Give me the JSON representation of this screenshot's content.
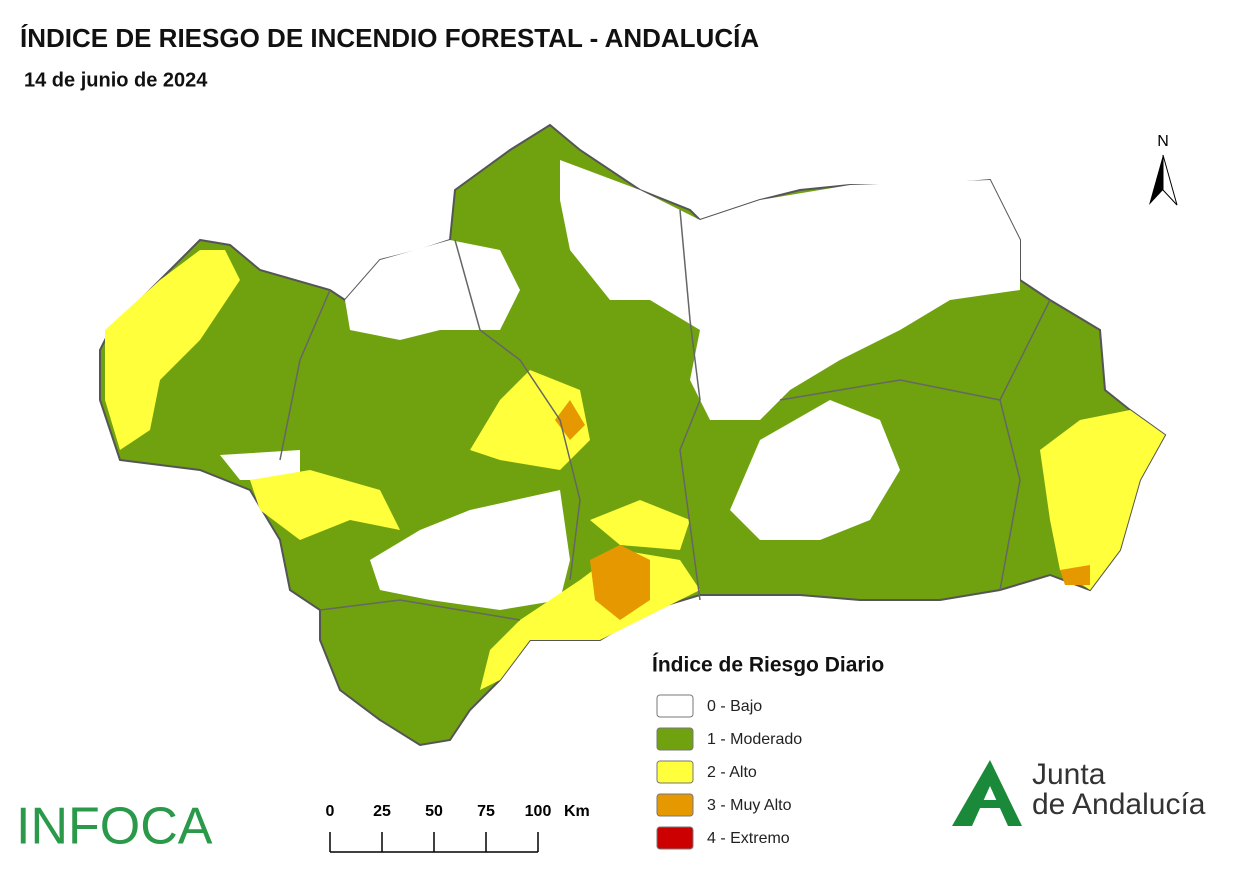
{
  "header": {
    "title": "ÍNDICE DE RIESGO DE INCENDIO FORESTAL - ANDALUCÍA",
    "date": "14 de junio de 2024"
  },
  "legend": {
    "title": "Índice de Riesgo Diario",
    "items": [
      {
        "label": "0 - Bajo",
        "color": "#ffffff"
      },
      {
        "label": "1 - Moderado",
        "color": "#70a20f"
      },
      {
        "label": "2 - Alto",
        "color": "#ffff3c"
      },
      {
        "label": "3 - Muy Alto",
        "color": "#e69800"
      },
      {
        "label": "4 - Extremo",
        "color": "#cc0000"
      }
    ]
  },
  "scale_bar": {
    "ticks": [
      0,
      25,
      50,
      75,
      100
    ],
    "unit": "Km"
  },
  "north_arrow": "N",
  "logos": {
    "infoca": "INFOCA",
    "junta": [
      "Junta",
      "de Andalucía"
    ]
  }
}
